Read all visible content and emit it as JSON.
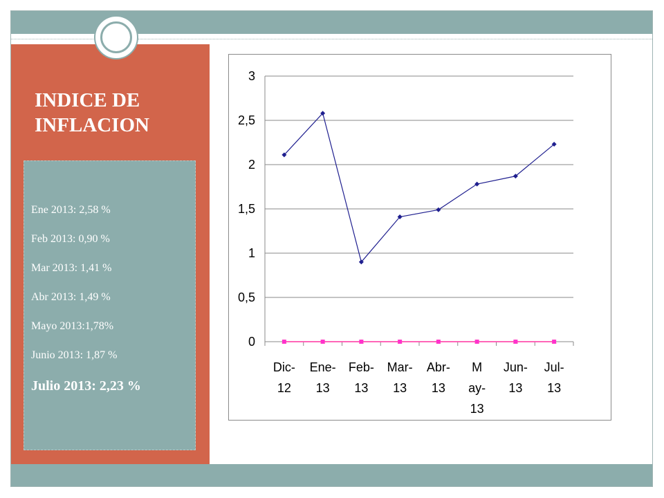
{
  "slide": {
    "title": "INDICE DE INFLACION",
    "items": [
      "Ene 2013: 2,58 %",
      "Feb 2013: 0,90 %",
      "Mar 2013: 1,41 %",
      "Abr 2013: 1,49 %",
      "Mayo 2013:1,78%",
      "Junio 2013: 1,87 %",
      "Julio 2013: 2,23 %"
    ],
    "colors": {
      "band": "#8cadac",
      "panel": "#d2654b",
      "text": "#ffffff"
    }
  },
  "chart_data": {
    "type": "line",
    "categories": [
      [
        "Dic-",
        "12"
      ],
      [
        "Ene-",
        "13"
      ],
      [
        "Feb-",
        "13"
      ],
      [
        "Mar-",
        "13"
      ],
      [
        "Abr-",
        "13"
      ],
      [
        "M",
        "ay-",
        "13"
      ],
      [
        "Jun-",
        "13"
      ],
      [
        "Jul-",
        "13"
      ]
    ],
    "series": [
      {
        "values": [
          2.11,
          2.58,
          0.9,
          1.41,
          1.49,
          1.78,
          1.87,
          2.23
        ],
        "color": "#1f1f8f",
        "marker": "diamond"
      },
      {
        "values": [
          0,
          0,
          0,
          0,
          0,
          0,
          0,
          0
        ],
        "color": "#ff33cc",
        "marker": "square"
      },
      {
        "values": [
          0,
          0,
          0,
          0,
          0,
          0,
          0,
          0
        ],
        "color": "#ffff00",
        "marker": "triangle"
      }
    ],
    "yticks": [
      "0",
      "0,5",
      "1",
      "1,5",
      "2",
      "2,5",
      "3"
    ],
    "ylim": [
      0,
      3
    ],
    "grid": true,
    "legend": "none"
  }
}
